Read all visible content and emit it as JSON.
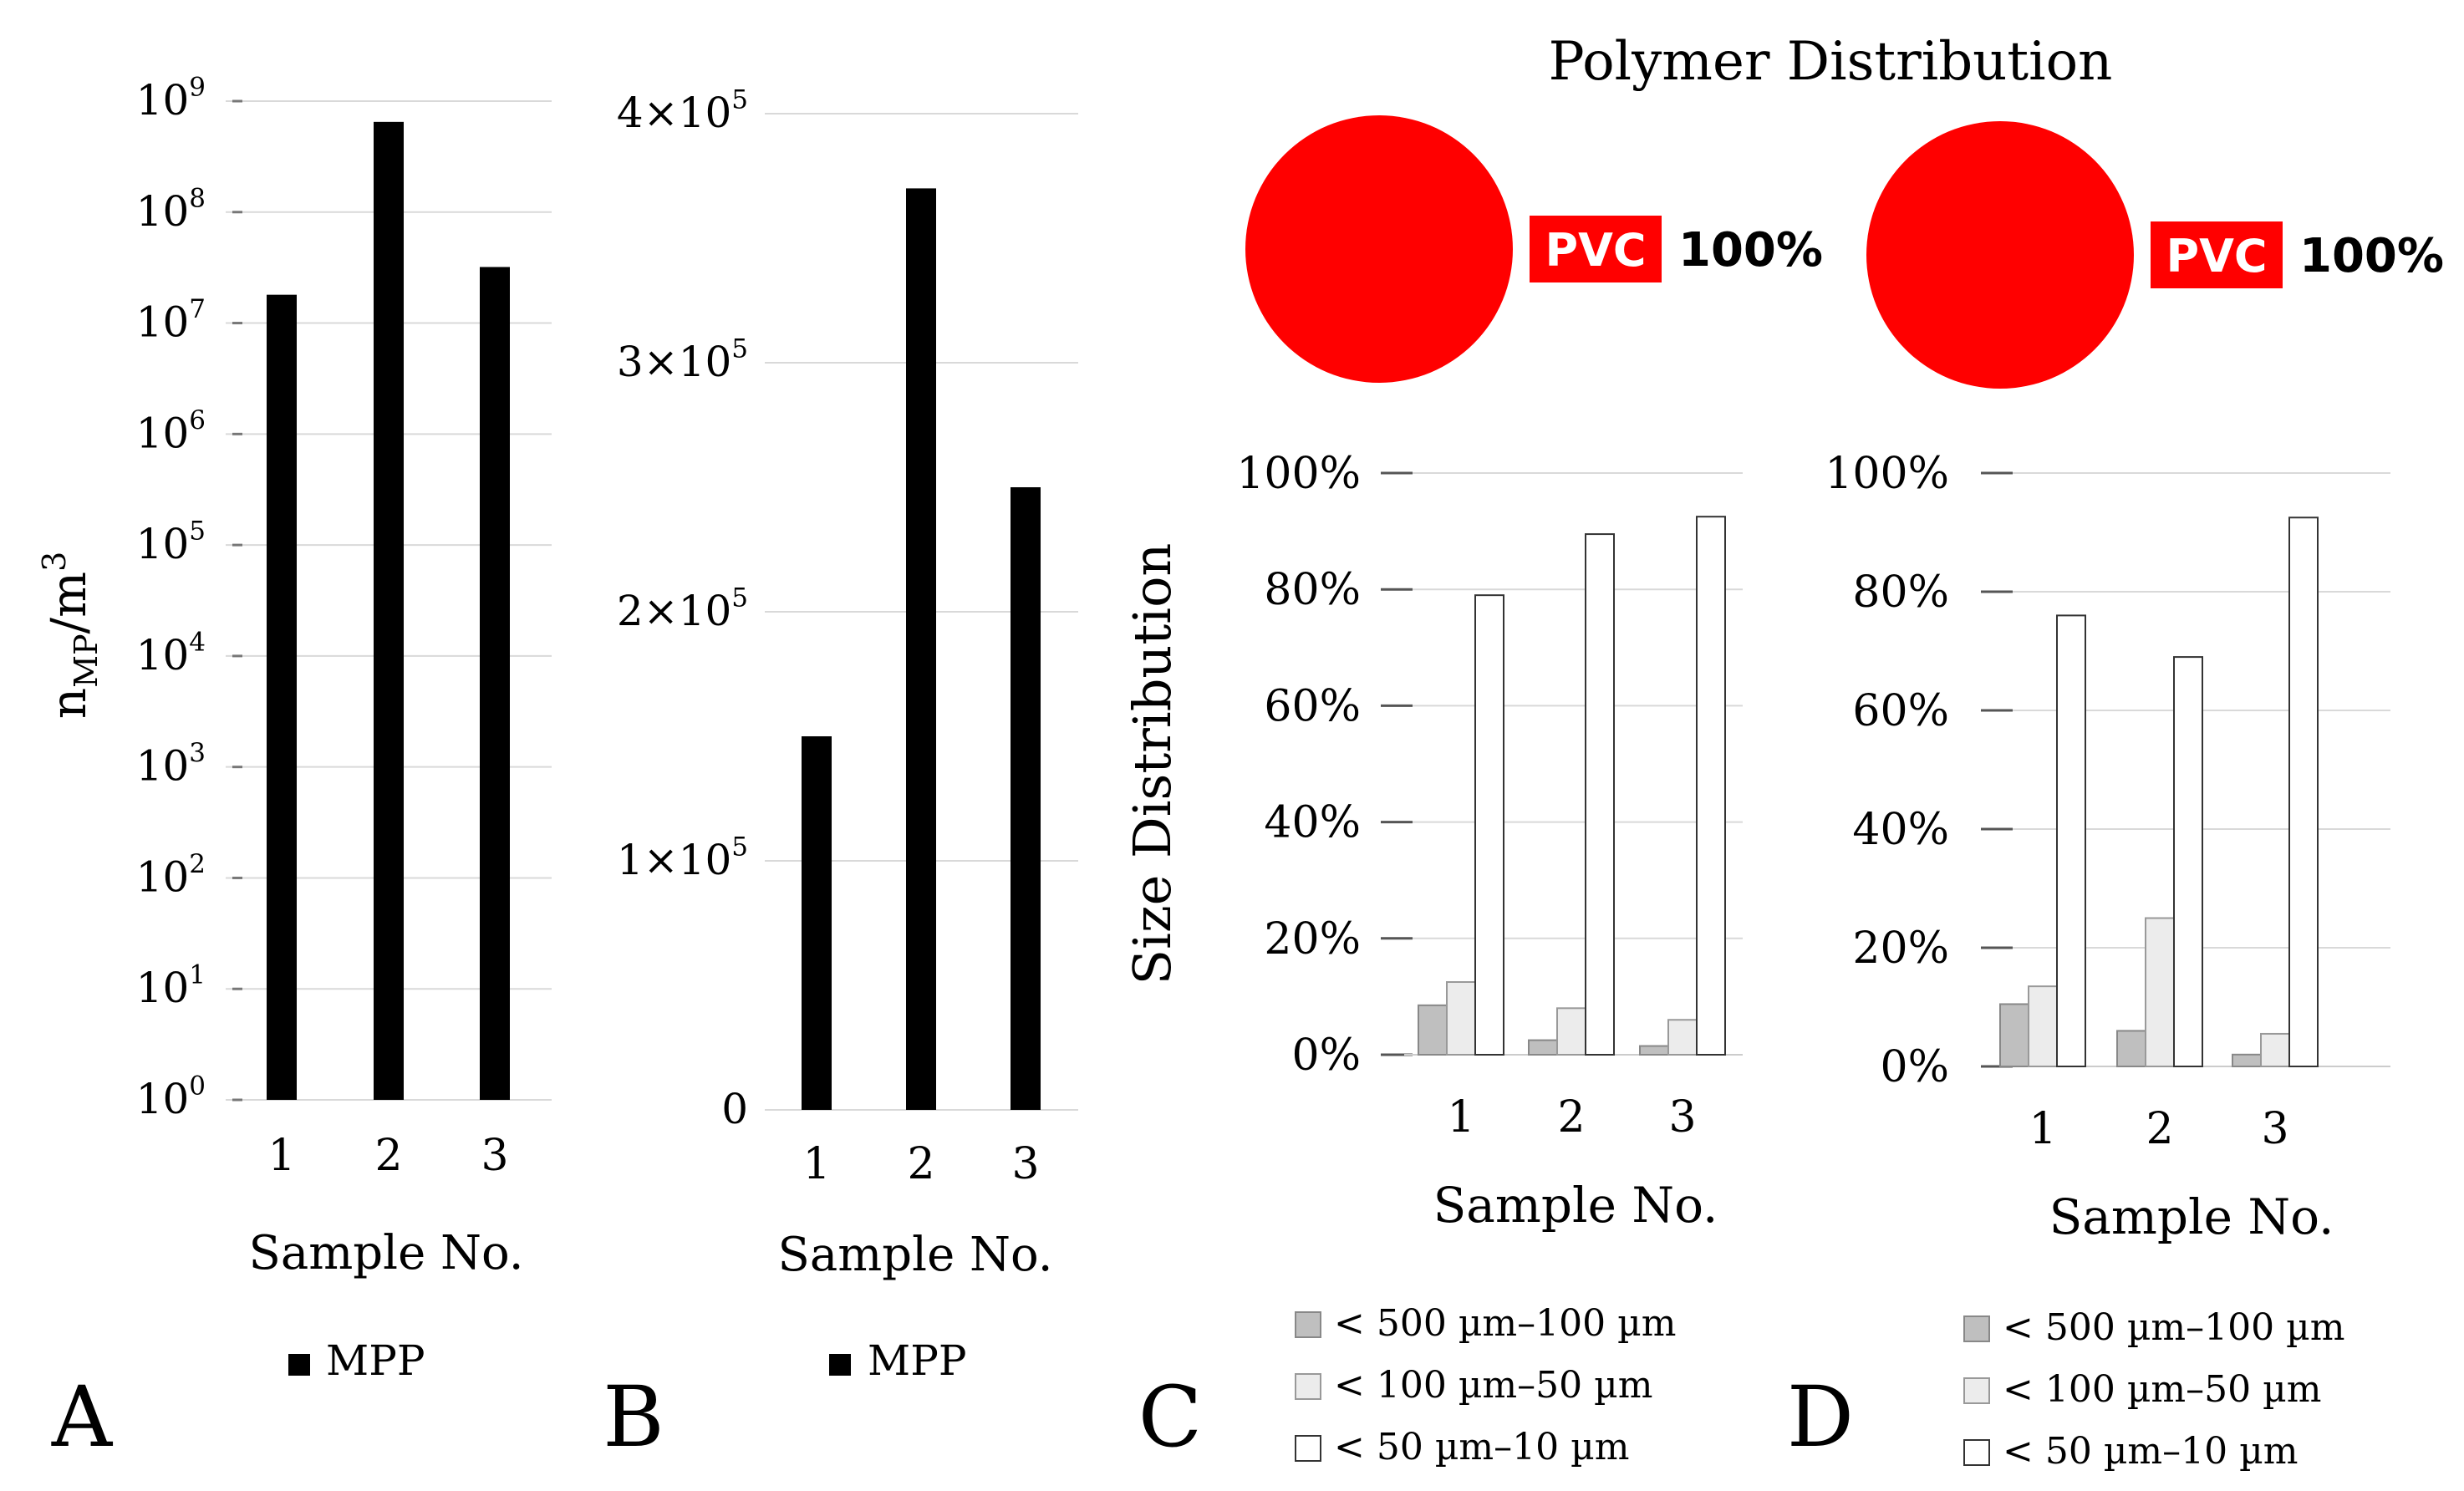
{
  "chart_data": [
    {
      "id": "A",
      "type": "bar",
      "panel_label": "A",
      "scale": "log",
      "categories": [
        "1",
        "2",
        "3"
      ],
      "series": [
        {
          "name": "MPP",
          "values": [
            18000000,
            650000000,
            32000000
          ]
        }
      ],
      "ylabel_main": "n",
      "ylabel_sub": "MP",
      "ylabel_unit": "/m",
      "ylabel_sup": "3",
      "xlabel": "Sample No.",
      "ylim": [
        1,
        1000000000
      ],
      "ticks": [
        {
          "base": "10",
          "exp": "0",
          "value": 1
        },
        {
          "base": "10",
          "exp": "1",
          "value": 10
        },
        {
          "base": "10",
          "exp": "2",
          "value": 100
        },
        {
          "base": "10",
          "exp": "3",
          "value": 1000
        },
        {
          "base": "10",
          "exp": "4",
          "value": 10000
        },
        {
          "base": "10",
          "exp": "5",
          "value": 100000
        },
        {
          "base": "10",
          "exp": "6",
          "value": 1000000
        },
        {
          "base": "10",
          "exp": "7",
          "value": 10000000
        },
        {
          "base": "10",
          "exp": "8",
          "value": 100000000
        },
        {
          "base": "10",
          "exp": "9",
          "value": 1000000000
        }
      ],
      "legend": [
        "MPP"
      ]
    },
    {
      "id": "B",
      "type": "bar",
      "panel_label": "B",
      "scale": "linear",
      "categories": [
        "1",
        "2",
        "3"
      ],
      "series": [
        {
          "name": "MPP",
          "values": [
            150000,
            370000,
            250000
          ]
        }
      ],
      "xlabel": "Sample No.",
      "ylim": [
        0,
        400000
      ],
      "ticks": [
        {
          "base": "0",
          "exp": "",
          "value": 0
        },
        {
          "base": "1×10",
          "exp": "5",
          "value": 100000
        },
        {
          "base": "2×10",
          "exp": "5",
          "value": 200000
        },
        {
          "base": "3×10",
          "exp": "5",
          "value": 300000
        },
        {
          "base": "4×10",
          "exp": "5",
          "value": 400000
        }
      ],
      "legend": [
        "MPP"
      ]
    },
    {
      "id": "C",
      "type": "bar",
      "panel_label": "C",
      "categories": [
        "1",
        "2",
        "3"
      ],
      "series": [
        {
          "name": "< 500 µm–100 µm",
          "values": [
            8.5,
            2.5,
            1.5
          ]
        },
        {
          "name": "< 100 µm–50 µm",
          "values": [
            12.5,
            8,
            6
          ]
        },
        {
          "name": "< 50 µm–10 µm",
          "values": [
            79,
            89.5,
            92.5
          ]
        }
      ],
      "ylabel": "Size Distribution",
      "xlabel": "Sample No.",
      "ylim": [
        0,
        100
      ],
      "ticks": [
        "0%",
        "20%",
        "40%",
        "60%",
        "80%",
        "100%"
      ],
      "pie": {
        "label": "PVC",
        "percent": "100%",
        "value": 100,
        "color": "#ff0000"
      }
    },
    {
      "id": "D",
      "type": "bar",
      "panel_label": "D",
      "categories": [
        "1",
        "2",
        "3"
      ],
      "series": [
        {
          "name": "< 500 µm–100 µm",
          "values": [
            10.5,
            6,
            2
          ]
        },
        {
          "name": "< 100 µm–50 µm",
          "values": [
            13.5,
            25,
            5.5
          ]
        },
        {
          "name": "< 50 µm–10 µm",
          "values": [
            76,
            69,
            92.5
          ]
        }
      ],
      "xlabel": "Sample No.",
      "ylim": [
        0,
        100
      ],
      "ticks": [
        "0%",
        "20%",
        "40%",
        "60%",
        "80%",
        "100%"
      ],
      "pie": {
        "label": "PVC",
        "percent": "100%",
        "value": 100,
        "color": "#ff0000"
      }
    }
  ],
  "polymer_title": "Polymer Distribution",
  "colors": {
    "bar_black": "#000000",
    "series": [
      "#bfbfbf",
      "#ececec",
      "#ffffff"
    ],
    "pie": "#ff0000"
  }
}
